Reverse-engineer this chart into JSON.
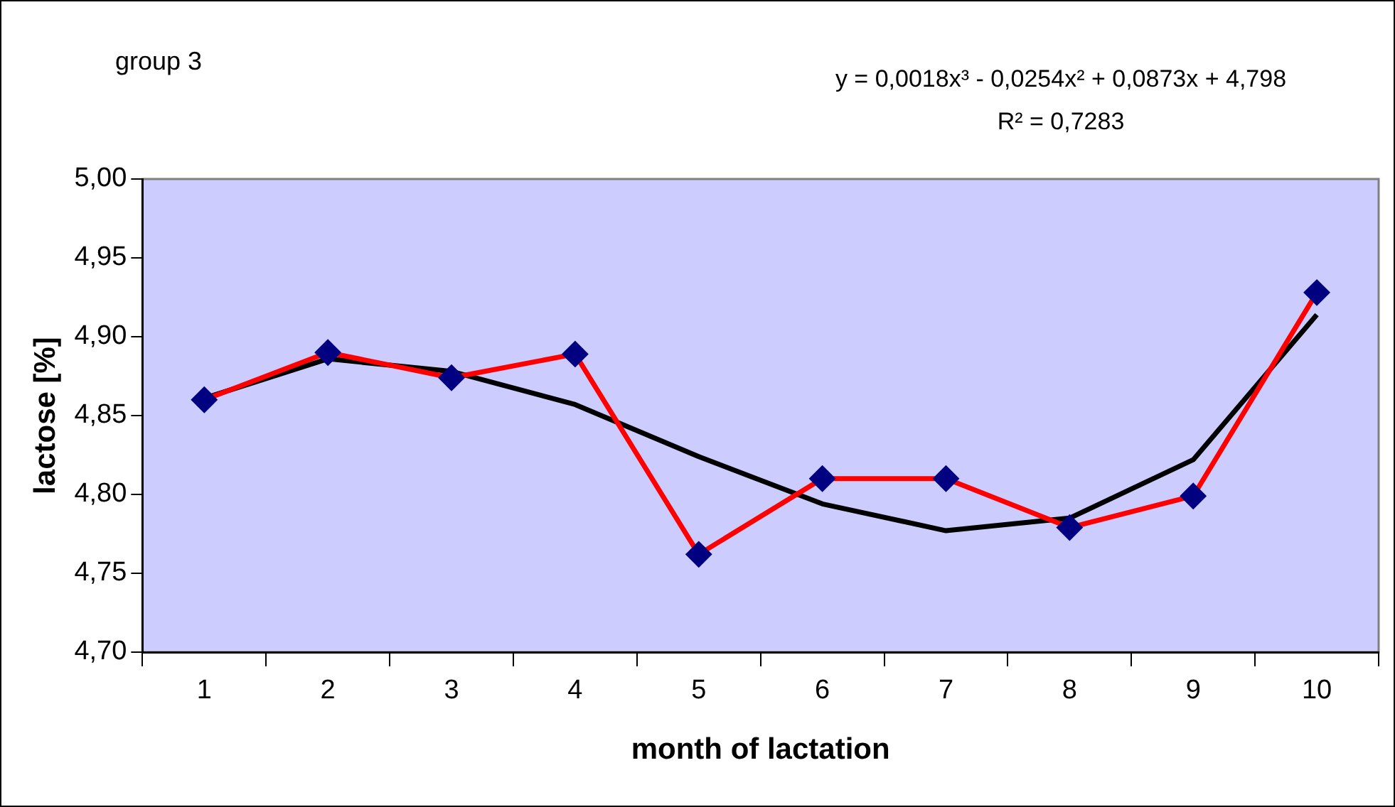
{
  "chart_data": {
    "type": "line",
    "title": "group 3",
    "xlabel": "month of lactation",
    "ylabel": "lactose [%]",
    "annotations": [
      "y = 0,0018x³ - 0,0254x² + 0,0873x + 4,798",
      "R² = 0,7283"
    ],
    "categories": [
      "1",
      "2",
      "3",
      "4",
      "5",
      "6",
      "7",
      "8",
      "9",
      "10"
    ],
    "series": [
      {
        "color": "#ff0000",
        "colors": [
          "#000080",
          "#000080",
          "#000080",
          "#000080",
          "#000080",
          "#000080",
          "#000080",
          "#000080",
          "#000080",
          "#000080"
        ],
        "marker": "diamond",
        "values": [
          4.86,
          4.89,
          4.874,
          4.889,
          4.762,
          4.81,
          4.81,
          4.779,
          4.799,
          4.928
        ]
      },
      {
        "type": "line",
        "color": "#000000",
        "marker": "none",
        "values": [
          4.861,
          4.886,
          4.878,
          4.857,
          4.824,
          4.794,
          4.777,
          4.785,
          4.822,
          4.914
        ]
      }
    ],
    "ylim": [
      4.7,
      5.0
    ],
    "yticks": [
      {
        "value": 4.7,
        "label": "4,70"
      },
      {
        "value": 4.75,
        "label": "4,75"
      },
      {
        "value": 4.8,
        "label": "4,80"
      },
      {
        "value": 4.85,
        "label": "4,85"
      },
      {
        "value": 4.9,
        "label": "4,90"
      },
      {
        "value": 4.95,
        "label": "4,95"
      },
      {
        "value": 5.0,
        "label": "5,00"
      }
    ],
    "grid": false,
    "legend": false
  }
}
